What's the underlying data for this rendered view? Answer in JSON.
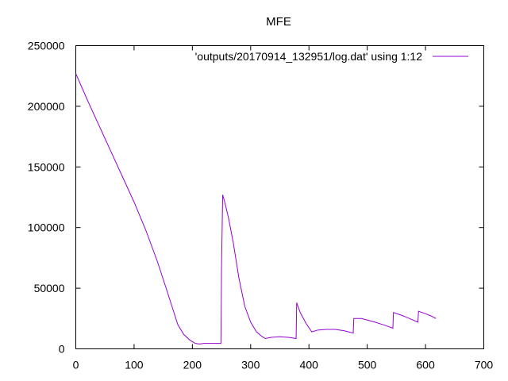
{
  "chart_data": {
    "type": "line",
    "title": "MFE",
    "xlabel": "",
    "ylabel": "",
    "xlim": [
      0,
      700
    ],
    "ylim": [
      0,
      250000
    ],
    "x_ticks": [
      "0",
      "100",
      "200",
      "300",
      "400",
      "500",
      "600",
      "700"
    ],
    "y_ticks": [
      "0",
      "50000",
      "100000",
      "150000",
      "200000",
      "250000"
    ],
    "grid": false,
    "legend_position": "top-right",
    "series": [
      {
        "name": "'outputs/20170914_132951/log.dat' using 1:12",
        "color": "#9400d3",
        "points": [
          [
            0,
            227000
          ],
          [
            20,
            205000
          ],
          [
            40,
            184000
          ],
          [
            60,
            163000
          ],
          [
            80,
            142000
          ],
          [
            100,
            121000
          ],
          [
            120,
            98000
          ],
          [
            140,
            72000
          ],
          [
            155,
            50000
          ],
          [
            165,
            35000
          ],
          [
            175,
            20000
          ],
          [
            185,
            12000
          ],
          [
            195,
            7500
          ],
          [
            205,
            4500
          ],
          [
            212,
            4000
          ],
          [
            220,
            4500
          ],
          [
            235,
            4500
          ],
          [
            249,
            4500
          ],
          [
            250,
            66000
          ],
          [
            252,
            127000
          ],
          [
            255,
            122000
          ],
          [
            262,
            108000
          ],
          [
            270,
            88000
          ],
          [
            280,
            58000
          ],
          [
            290,
            35000
          ],
          [
            300,
            22000
          ],
          [
            310,
            14000
          ],
          [
            320,
            10000
          ],
          [
            325,
            8500
          ],
          [
            335,
            9500
          ],
          [
            350,
            10000
          ],
          [
            365,
            9500
          ],
          [
            378,
            8500
          ],
          [
            379,
            38000
          ],
          [
            385,
            30000
          ],
          [
            395,
            21000
          ],
          [
            405,
            14000
          ],
          [
            415,
            15500
          ],
          [
            430,
            16000
          ],
          [
            445,
            16000
          ],
          [
            460,
            15000
          ],
          [
            476,
            13000
          ],
          [
            477,
            25000
          ],
          [
            490,
            25000
          ],
          [
            510,
            22500
          ],
          [
            530,
            19500
          ],
          [
            544,
            17000
          ],
          [
            545,
            30000
          ],
          [
            560,
            27500
          ],
          [
            575,
            24500
          ],
          [
            587,
            22000
          ],
          [
            588,
            31000
          ],
          [
            600,
            29000
          ],
          [
            610,
            27000
          ],
          [
            618,
            25000
          ]
        ]
      }
    ]
  }
}
